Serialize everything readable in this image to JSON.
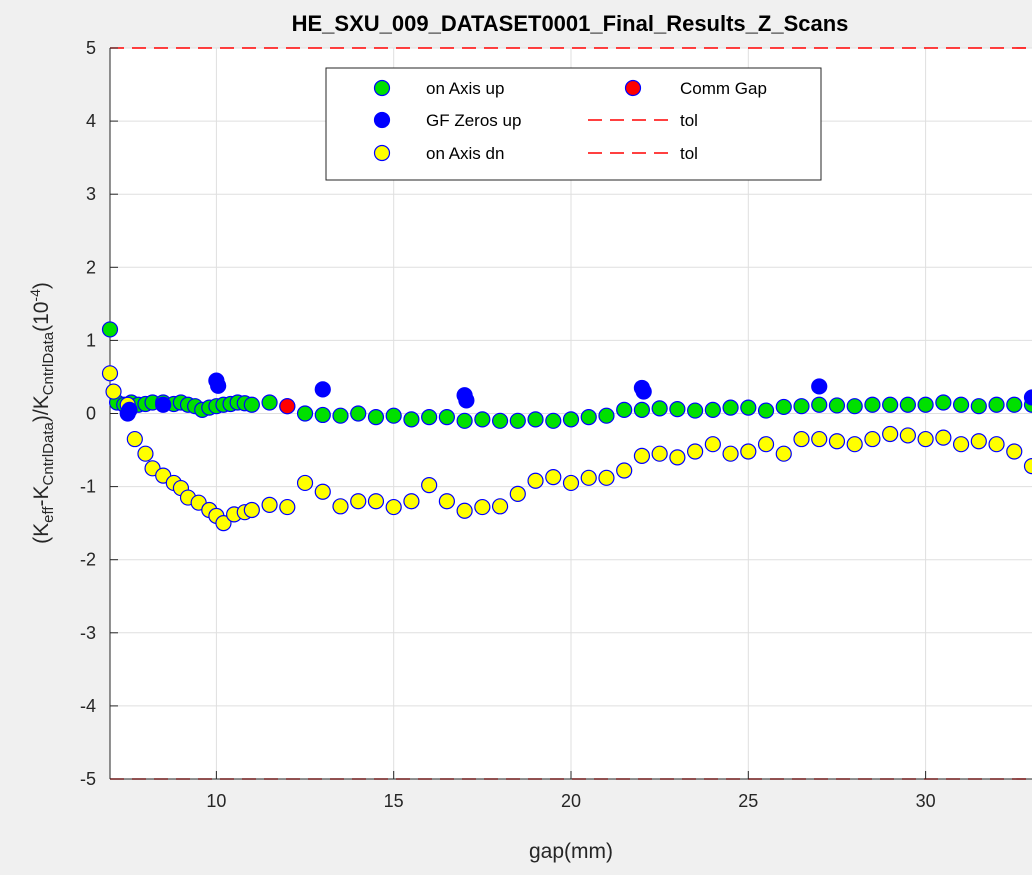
{
  "chart_data": {
    "type": "scatter",
    "title": "HE_SXU_009_DATASET0001_Final_Results_Z_Scans",
    "xlabel": "gap(mm)",
    "ylabel": {
      "prefix": "(K",
      "sub1": "eff",
      "mid": "-K",
      "sub2": "CntrlData",
      "mid2": ")/K",
      "sub3": "CntrlData",
      "unit_open": "(10",
      "sup": "-4",
      "unit_close": ")"
    },
    "xlim": [
      7,
      33
    ],
    "ylim": [
      -5,
      5
    ],
    "xticks": [
      10,
      15,
      20,
      25,
      30
    ],
    "xtick_labels": [
      "10",
      "15",
      "20",
      "25",
      "30"
    ],
    "yticks": [
      -5,
      -4,
      -3,
      -2,
      -1,
      0,
      1,
      2,
      3,
      4,
      5
    ],
    "ytick_labels": [
      "-5",
      "-4",
      "-3",
      "-2",
      "-1",
      "0",
      "1",
      "2",
      "3",
      "4",
      "5"
    ],
    "grid": true,
    "legend_position": "top-center",
    "tolerance": [
      5,
      -5
    ],
    "series": [
      {
        "name": "on Axis up",
        "color": "#00e000",
        "x": [
          7.0,
          7.2,
          7.4,
          7.6,
          7.8,
          8.0,
          8.2,
          8.5,
          8.8,
          9.0,
          9.2,
          9.4,
          9.6,
          9.8,
          10.0,
          10.2,
          10.4,
          10.6,
          10.8,
          11.0,
          11.5,
          12.0,
          12.5,
          13.0,
          13.5,
          14.0,
          14.5,
          15.0,
          15.5,
          16.0,
          16.5,
          17.0,
          17.5,
          18.0,
          18.5,
          19.0,
          19.5,
          20.0,
          20.5,
          21.0,
          21.5,
          22.0,
          22.5,
          23.0,
          23.5,
          24.0,
          24.5,
          25.0,
          25.5,
          26.0,
          26.5,
          27.0,
          27.5,
          28.0,
          28.5,
          29.0,
          29.5,
          30.0,
          30.5,
          31.0,
          31.5,
          32.0,
          32.5,
          33.0
        ],
        "y": [
          1.15,
          0.15,
          0.12,
          0.15,
          0.12,
          0.13,
          0.15,
          0.15,
          0.13,
          0.15,
          0.12,
          0.1,
          0.05,
          0.08,
          0.1,
          0.12,
          0.13,
          0.15,
          0.14,
          0.12,
          0.15,
          0.1,
          0.0,
          -0.02,
          -0.03,
          0.0,
          -0.05,
          -0.03,
          -0.08,
          -0.05,
          -0.05,
          -0.1,
          -0.08,
          -0.1,
          -0.1,
          -0.08,
          -0.1,
          -0.08,
          -0.05,
          -0.03,
          0.05,
          0.05,
          0.07,
          0.06,
          0.04,
          0.05,
          0.08,
          0.08,
          0.04,
          0.09,
          0.1,
          0.12,
          0.11,
          0.1,
          0.12,
          0.12,
          0.12,
          0.12,
          0.15,
          0.12,
          0.1,
          0.12,
          0.12,
          0.12
        ]
      },
      {
        "name": "GF Zeros up",
        "color": "#0000ff",
        "x": [
          7.5,
          7.55,
          8.5,
          10.0,
          10.05,
          13.0,
          17.0,
          17.05,
          22.0,
          22.05,
          27.0,
          33.0
        ],
        "y": [
          0.0,
          0.05,
          0.12,
          0.45,
          0.38,
          0.33,
          0.25,
          0.18,
          0.35,
          0.3,
          0.37,
          0.22
        ]
      },
      {
        "name": "on Axis dn",
        "color": "#ffff00",
        "x": [
          7.0,
          7.1,
          7.5,
          7.7,
          8.0,
          8.2,
          8.5,
          8.8,
          9.0,
          9.2,
          9.5,
          9.8,
          10.0,
          10.2,
          10.5,
          10.8,
          11.0,
          11.5,
          12.0,
          12.5,
          13.0,
          13.5,
          14.0,
          14.5,
          15.0,
          15.5,
          16.0,
          16.5,
          17.0,
          17.5,
          18.0,
          18.5,
          19.0,
          19.5,
          20.0,
          20.5,
          21.0,
          21.5,
          22.0,
          22.5,
          23.0,
          23.5,
          24.0,
          24.5,
          25.0,
          25.5,
          26.0,
          26.5,
          27.0,
          27.5,
          28.0,
          28.5,
          29.0,
          29.5,
          30.0,
          30.5,
          31.0,
          31.5,
          32.0,
          32.5,
          33.0
        ],
        "y": [
          0.55,
          0.3,
          0.12,
          -0.35,
          -0.55,
          -0.75,
          -0.85,
          -0.95,
          -1.02,
          -1.15,
          -1.22,
          -1.32,
          -1.4,
          -1.5,
          -1.38,
          -1.35,
          -1.32,
          -1.25,
          -1.28,
          -0.95,
          -1.07,
          -1.27,
          -1.2,
          -1.2,
          -1.28,
          -1.2,
          -0.98,
          -1.2,
          -1.33,
          -1.28,
          -1.27,
          -1.1,
          -0.92,
          -0.87,
          -0.95,
          -0.88,
          -0.88,
          -0.78,
          -0.58,
          -0.55,
          -0.6,
          -0.52,
          -0.42,
          -0.55,
          -0.52,
          -0.42,
          -0.55,
          -0.35,
          -0.35,
          -0.38,
          -0.42,
          -0.35,
          -0.28,
          -0.3,
          -0.35,
          -0.33,
          -0.42,
          -0.38,
          -0.42,
          -0.52,
          -0.72
        ]
      },
      {
        "name": "Comm Gap",
        "color": "#ff0000",
        "x": [
          12.0
        ],
        "y": [
          0.1
        ]
      }
    ],
    "legend": [
      {
        "label": "on Axis up",
        "kind": "marker",
        "color": "#00e000"
      },
      {
        "label": "Comm Gap",
        "kind": "marker",
        "color": "#ff0000"
      },
      {
        "label": "GF Zeros up",
        "kind": "marker",
        "color": "#0000ff"
      },
      {
        "label": "tol",
        "kind": "dash",
        "color": "#ff0000"
      },
      {
        "label": "on Axis dn",
        "kind": "marker",
        "color": "#ffff00"
      },
      {
        "label": "tol",
        "kind": "dash",
        "color": "#ff0000"
      }
    ]
  }
}
